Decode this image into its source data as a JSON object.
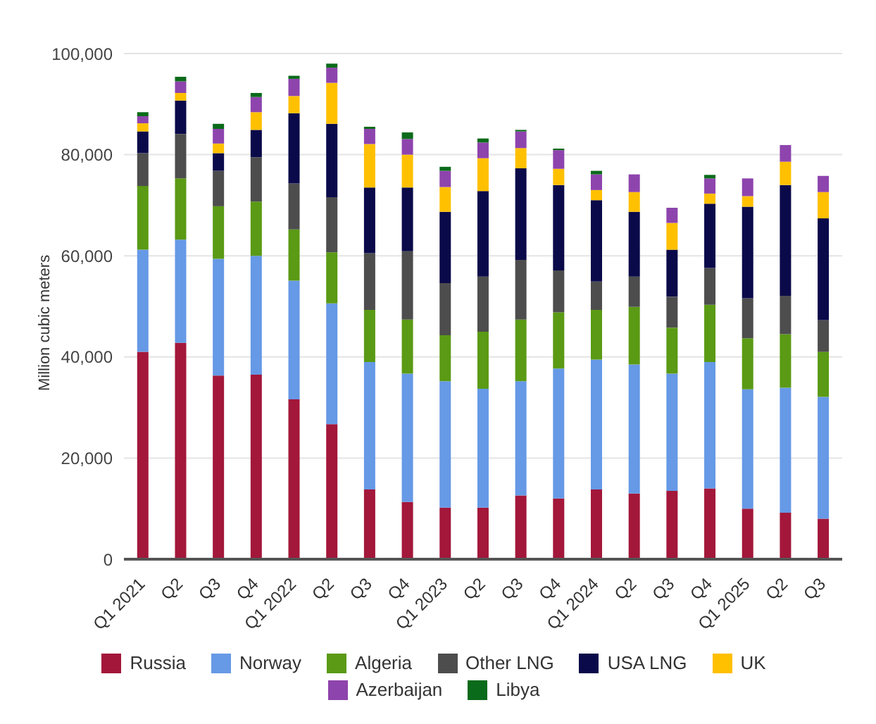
{
  "chart_data": {
    "type": "bar",
    "stacked": true,
    "ylabel": "Million cubic meters",
    "categories": [
      "Q1 2021",
      "Q2",
      "Q3",
      "Q4",
      "Q1 2022",
      "Q2",
      "Q3",
      "Q4",
      "Q1 2023",
      "Q2",
      "Q3",
      "Q4",
      "Q1 2024",
      "Q2",
      "Q3",
      "Q4",
      "Q1 2025",
      "Q2",
      "Q3"
    ],
    "series": [
      {
        "name": "Russia",
        "color": "#a3173a",
        "values": [
          41000,
          42800,
          36300,
          36500,
          31600,
          26700,
          13800,
          11300,
          10200,
          10200,
          12600,
          12000,
          13800,
          13000,
          13500,
          14000,
          10000,
          9200,
          8000
        ]
      },
      {
        "name": "Norway",
        "color": "#6699e6",
        "values": [
          20200,
          20400,
          23100,
          23500,
          23500,
          23900,
          25200,
          25400,
          25000,
          23500,
          22600,
          25700,
          25700,
          25500,
          23200,
          25000,
          23600,
          24700,
          24100
        ]
      },
      {
        "name": "Algeria",
        "color": "#5a9a14",
        "values": [
          12600,
          12100,
          10400,
          10700,
          10100,
          10100,
          10300,
          10700,
          9100,
          11300,
          12200,
          11100,
          9800,
          11400,
          9100,
          11300,
          10100,
          10600,
          8900
        ]
      },
      {
        "name": "Other LNG",
        "color": "#4d4d4d",
        "values": [
          6500,
          8800,
          7000,
          8800,
          9100,
          10900,
          11200,
          13500,
          10300,
          10900,
          11800,
          8300,
          5600,
          6000,
          6100,
          7300,
          7900,
          7600,
          6300
        ]
      },
      {
        "name": "USA LNG",
        "color": "#0a0a4a",
        "values": [
          4300,
          6600,
          3500,
          5400,
          13900,
          14500,
          13000,
          12600,
          14100,
          16900,
          18100,
          16900,
          16100,
          12800,
          9300,
          12700,
          18100,
          21900,
          20100
        ]
      },
      {
        "name": "UK",
        "color": "#ffc000",
        "values": [
          1600,
          1500,
          1900,
          3500,
          3400,
          8100,
          8600,
          6500,
          4900,
          6500,
          4000,
          3200,
          2000,
          3900,
          5300,
          2000,
          2100,
          4600,
          5200
        ]
      },
      {
        "name": "Azerbaijan",
        "color": "#8e44ad",
        "values": [
          1400,
          2300,
          2900,
          3000,
          3400,
          3000,
          3000,
          3100,
          3200,
          3100,
          3300,
          3700,
          3100,
          3500,
          3000,
          3000,
          3500,
          3300,
          3200
        ]
      },
      {
        "name": "Libya",
        "color": "#0a6b1a",
        "values": [
          800,
          900,
          1000,
          800,
          600,
          800,
          400,
          1300,
          800,
          800,
          300,
          300,
          700,
          0,
          0,
          700,
          0,
          0,
          0
        ]
      }
    ],
    "ylim": [
      0,
      100000
    ],
    "yticks": [
      0,
      {
        "value": 20000,
        "label": "20,000"
      },
      {
        "value": 40000,
        "label": "40,000"
      },
      {
        "value": 60000,
        "label": "60,000"
      },
      {
        "value": 80000,
        "label": "80,000"
      },
      {
        "value": 100000,
        "label": "100,000"
      }
    ],
    "grid": "y",
    "legend": "bottom"
  }
}
